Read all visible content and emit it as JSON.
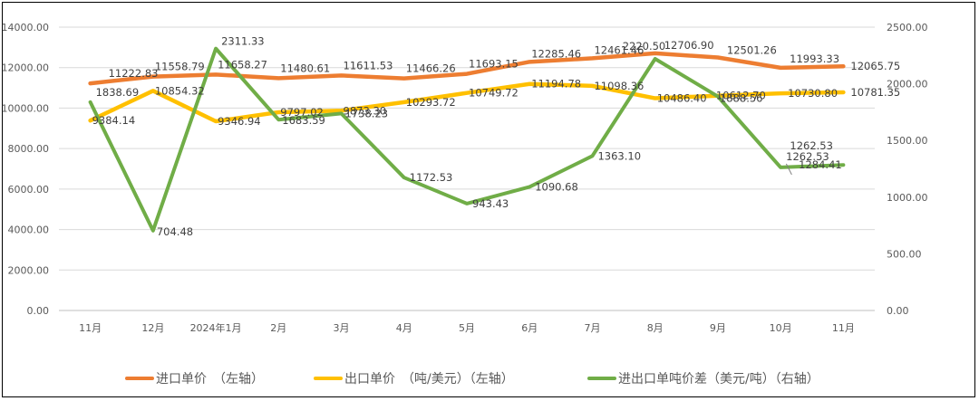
{
  "chart_data": {
    "type": "line",
    "categories": [
      "11月",
      "12月",
      "2024年1月",
      "2月",
      "3月",
      "4月",
      "5月",
      "6月",
      "7月",
      "8月",
      "9月",
      "10月",
      "11月"
    ],
    "y_left_ticks": [
      "0.00",
      "2000.00",
      "4000.00",
      "6000.00",
      "8000.00",
      "10000.00",
      "12000.00",
      "14000.00"
    ],
    "y_right_ticks": [
      "0.00",
      "500.00",
      "1000.00",
      "1500.00",
      "2000.00",
      "2500.00"
    ],
    "ylim_left": [
      0,
      14000
    ],
    "ylim_right": [
      0,
      2500
    ],
    "grid": true,
    "legend_position": "bottom",
    "series": [
      {
        "name": "进口单价　（左轴）",
        "axis": "left",
        "color": "#ED7D31",
        "values": [
          11222.83,
          11558.79,
          11658.27,
          11480.61,
          11611.53,
          11466.26,
          11693.15,
          12285.46,
          12461.46,
          12706.9,
          12501.26,
          11993.33,
          12065.75
        ],
        "labels": [
          "11222.83",
          "11558.79",
          "11658.27",
          "11480.61",
          "11611.53",
          "11466.26",
          "11693.15",
          "12285.46",
          "12461.46",
          "12706.90",
          "12501.26",
          "11993.33",
          "12065.75"
        ]
      },
      {
        "name": "出口单价　（吨/美元）（左轴）",
        "axis": "left",
        "color": "#FFC000",
        "values": [
          9384.14,
          10854.32,
          9346.94,
          9797.02,
          9873.3,
          10293.72,
          10749.72,
          11194.78,
          11098.36,
          10486.4,
          10612.7,
          10730.8,
          10781.35
        ],
        "labels": [
          "9384.14",
          "10854.32",
          "9346.94",
          "9797.02",
          "9873.30",
          "10293.72",
          "10749.72",
          "11194.78",
          "11098.36",
          "10486.40",
          "10612.70",
          "10730.80",
          "10781.35"
        ]
      },
      {
        "name": "进出口单吨价差（美元/吨）（右轴）",
        "axis": "right",
        "color": "#70AD47",
        "values": [
          1838.69,
          704.48,
          2311.33,
          1683.59,
          1738.23,
          1172.53,
          943.43,
          1090.68,
          1363.1,
          2220.5,
          1888.56,
          1262.53,
          1284.41
        ],
        "labels": [
          "1838.69",
          "704.48",
          "2311.33",
          "1683.59",
          "1738.23",
          "1172.53",
          "943.43",
          "1090.68",
          "1363.10",
          "2220.50",
          "1888.56",
          "1262.53",
          "1284.41"
        ]
      }
    ]
  }
}
